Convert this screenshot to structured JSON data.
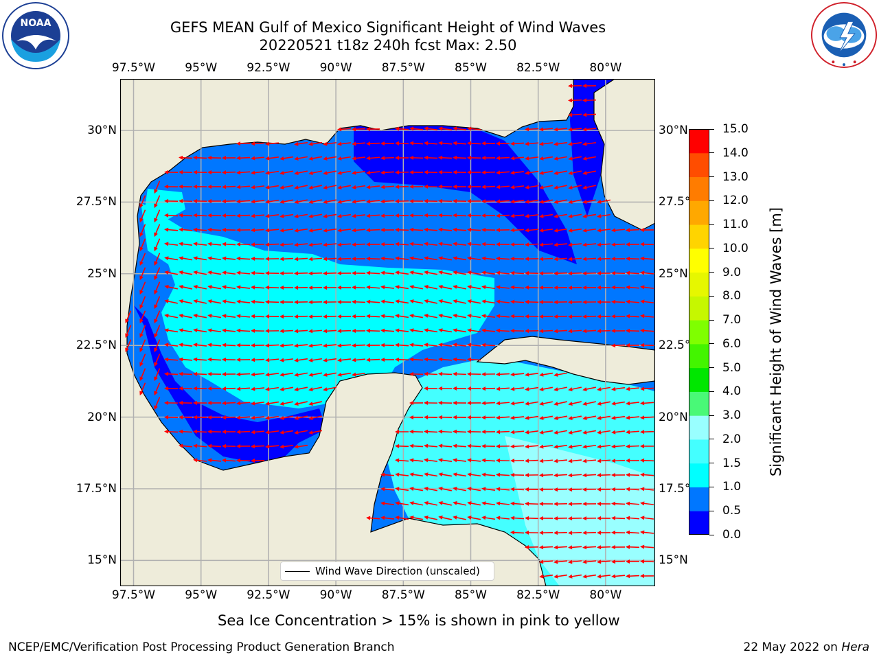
{
  "header": {
    "title_line1": "GEFS MEAN Gulf of Mexico Significant Height of Wind Waves",
    "title_line2": "20220521 t18z 240h fcst   Max: 2.50"
  },
  "logos": {
    "noaa": {
      "text": "NOAA",
      "ring_text": "NATIONAL OCEANIC AND ATMOSPHERIC ADMINISTRATION · U.S. DEPARTMENT OF COMMERCE"
    },
    "nws": {
      "ring_text": "NATIONAL WEATHER SERVICE"
    }
  },
  "map": {
    "lon_labels": [
      "97.5°W",
      "95°W",
      "92.5°W",
      "90°W",
      "87.5°W",
      "85°W",
      "82.5°W",
      "80°W"
    ],
    "lat_labels": [
      "30°N",
      "27.5°N",
      "25°N",
      "22.5°N",
      "20°N",
      "17.5°N",
      "15°N"
    ],
    "lon_range": [
      -98,
      -78.2
    ],
    "lat_range": [
      14,
      31.8
    ],
    "land_color": "#eeecda",
    "grid_color": "#b0b0b0",
    "arrow_color": "#ff0000",
    "coast_color": "#000000"
  },
  "legend": {
    "label": "Wind Wave Direction (unscaled)"
  },
  "colorbar": {
    "label": "Significant Height of Wind Waves [m]",
    "tick_labels": [
      "0.0",
      "0.5",
      "1.0",
      "1.5",
      "2.0",
      "3.0",
      "4.0",
      "5.0",
      "6.0",
      "7.0",
      "8.0",
      "9.0",
      "10.0",
      "11.0",
      "12.0",
      "13.0",
      "14.0",
      "15.0"
    ],
    "colors": [
      "#0000ff",
      "#0077ff",
      "#00ffff",
      "#44ffff",
      "#99ffff",
      "#49f977",
      "#00e700",
      "#43f500",
      "#7fff00",
      "#c6f700",
      "#e6f700",
      "#ffff00",
      "#ffd400",
      "#ffa800",
      "#ff7c00",
      "#ff4d00",
      "#ff0000"
    ]
  },
  "note": "Sea Ice Concentration > 15% is shown in pink to yellow",
  "footer": {
    "left": "NCEP/EMC/Verification Post Processing Product Generation Branch",
    "right_date": "22 May 2022 on ",
    "right_host": "Hera"
  }
}
